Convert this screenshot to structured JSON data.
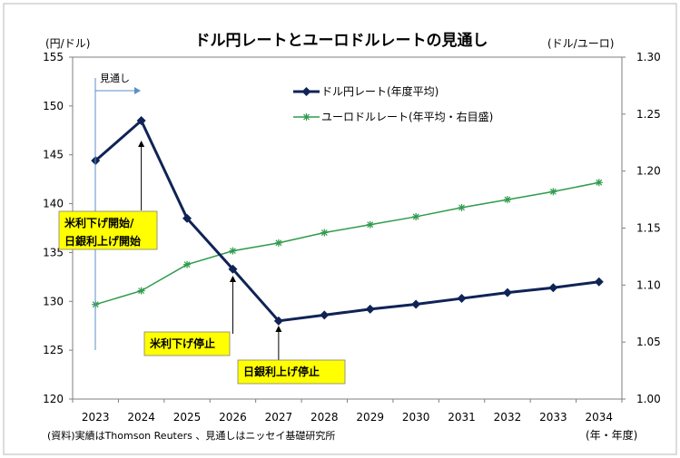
{
  "chart_data": {
    "type": "line",
    "title": "ドル円レートとユーロドルレートの見通し",
    "x": [
      "2023",
      "2024",
      "2025",
      "2026",
      "2027",
      "2028",
      "2029",
      "2030",
      "2031",
      "2032",
      "2033",
      "2034"
    ],
    "y_left_label": "(円/ドル)",
    "y_right_label": "(ドル/ユーロ)",
    "ylim_left": [
      120,
      155
    ],
    "ylim_right": [
      1.0,
      1.3
    ],
    "y_left_ticks": [
      120,
      125,
      130,
      135,
      140,
      145,
      150,
      155
    ],
    "y_right_ticks": [
      "1.00",
      "1.05",
      "1.10",
      "1.15",
      "1.20",
      "1.25",
      "1.30"
    ],
    "x_unit_label": "(年・年度)",
    "legend_position": "top-right",
    "grid": false,
    "series": [
      {
        "name": "ドル円レート(年度平均)",
        "axis": "left",
        "color": "#0f2356",
        "marker": "diamond",
        "values": [
          144.4,
          148.5,
          138.5,
          133.3,
          128.0,
          128.6,
          129.2,
          129.7,
          130.3,
          130.9,
          131.4,
          132.0
        ]
      },
      {
        "name": "ユーロドルレート(年平均・右目盛)",
        "axis": "right",
        "color": "#2e9b4b",
        "marker": "asterisk",
        "values": [
          1.083,
          1.095,
          1.118,
          1.13,
          1.137,
          1.146,
          1.153,
          1.16,
          1.168,
          1.175,
          1.182,
          1.19
        ]
      }
    ],
    "annotations": [
      {
        "text": "見通し",
        "type": "forecast-marker",
        "at_x": "2023"
      },
      {
        "lines": [
          "米利下げ開始/",
          "日銀利上げ開始"
        ],
        "at_x": "2024"
      },
      {
        "lines": [
          "米利下げ停止"
        ],
        "at_x": "2026"
      },
      {
        "lines": [
          "日銀利上げ停止"
        ],
        "at_x": "2027"
      }
    ],
    "source_note": "(資料)実績はThomson Reuters 、見通しはニッセイ基礎研究所"
  },
  "colors": {
    "usdjpy": "#0f2356",
    "eurusd": "#2e9b4b",
    "annotation_fill": "#ffff00",
    "forecast_line": "#5b8fc7"
  }
}
